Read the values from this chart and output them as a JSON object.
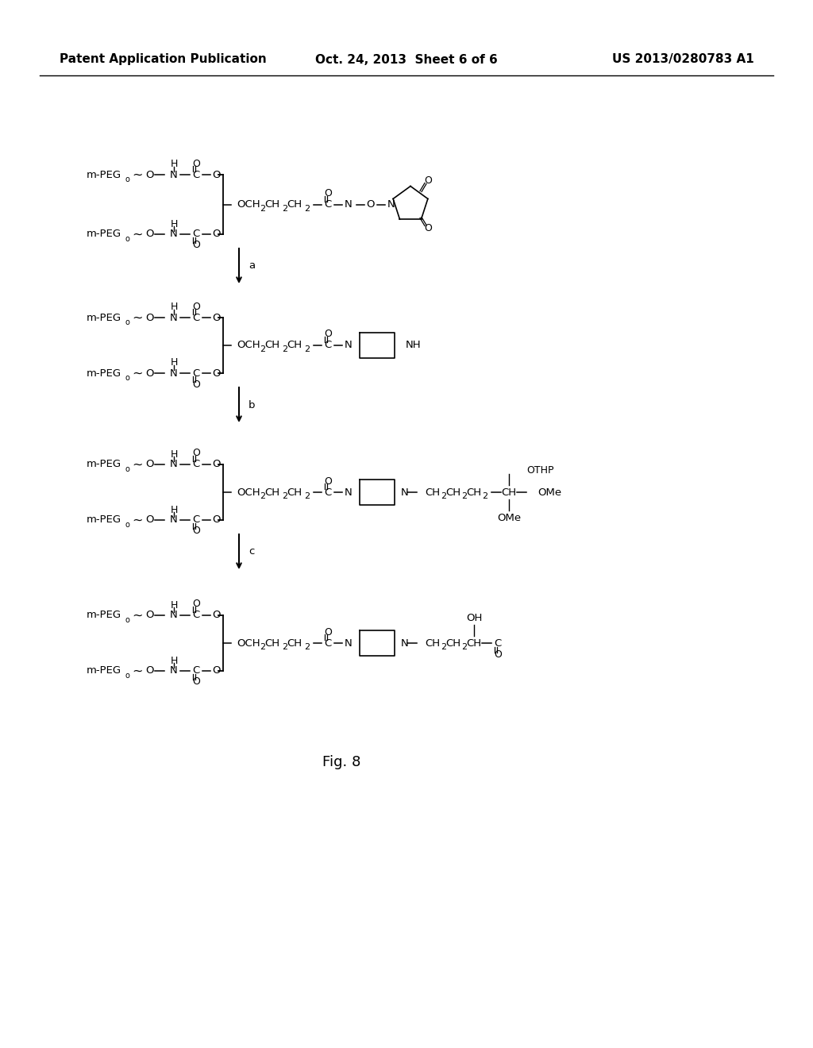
{
  "background_color": "#ffffff",
  "text_color": "#000000",
  "header_left": "Patent Application Publication",
  "header_center": "Oct. 24, 2013  Sheet 6 of 6",
  "header_right": "US 2013/0280783 A1",
  "figure_label": "Fig. 8",
  "header_font_size": 11,
  "body_font_size": 9.5,
  "small_font_size": 8,
  "title_font_size": 13
}
